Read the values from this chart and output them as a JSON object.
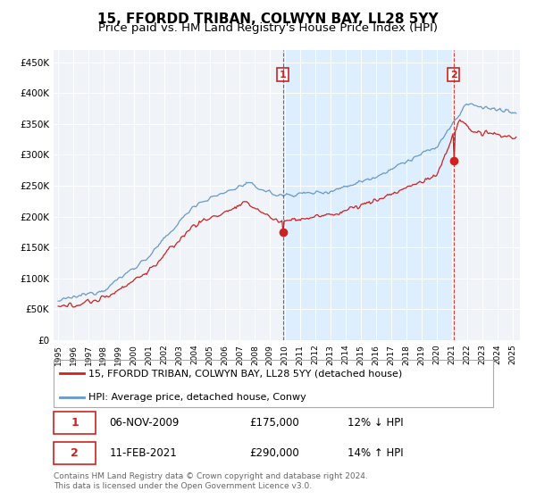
{
  "title": "15, FFORDD TRIBAN, COLWYN BAY, LL28 5YY",
  "subtitle": "Price paid vs. HM Land Registry's House Price Index (HPI)",
  "title_fontsize": 11,
  "subtitle_fontsize": 9.5,
  "background_color": "#ffffff",
  "plot_bg_color": "#f0f4f8",
  "grid_color": "#ffffff",
  "hpi_color": "#6699cc",
  "price_color": "#cc2222",
  "dashed_color": "#cc2222",
  "highlight_color": "#ddeeff",
  "ylim": [
    0,
    470000
  ],
  "yticks": [
    0,
    50000,
    100000,
    150000,
    200000,
    250000,
    300000,
    350000,
    400000,
    450000
  ],
  "ytick_labels": [
    "£0",
    "£50K",
    "£100K",
    "£150K",
    "£200K",
    "£250K",
    "£300K",
    "£350K",
    "£400K",
    "£450K"
  ],
  "xlim_start": 1994.7,
  "xlim_end": 2025.5,
  "transaction1_x": 2009.85,
  "transaction1_y": 175000,
  "transaction2_x": 2021.12,
  "transaction2_y": 290000,
  "legend_label_red": "15, FFORDD TRIBAN, COLWYN BAY, LL28 5YY (detached house)",
  "legend_label_blue": "HPI: Average price, detached house, Conwy",
  "annotation1_date": "06-NOV-2009",
  "annotation1_price": "£175,000",
  "annotation1_hpi": "12% ↓ HPI",
  "annotation2_date": "11-FEB-2021",
  "annotation2_price": "£290,000",
  "annotation2_hpi": "14% ↑ HPI",
  "footer": "Contains HM Land Registry data © Crown copyright and database right 2024.\nThis data is licensed under the Open Government Licence v3.0."
}
